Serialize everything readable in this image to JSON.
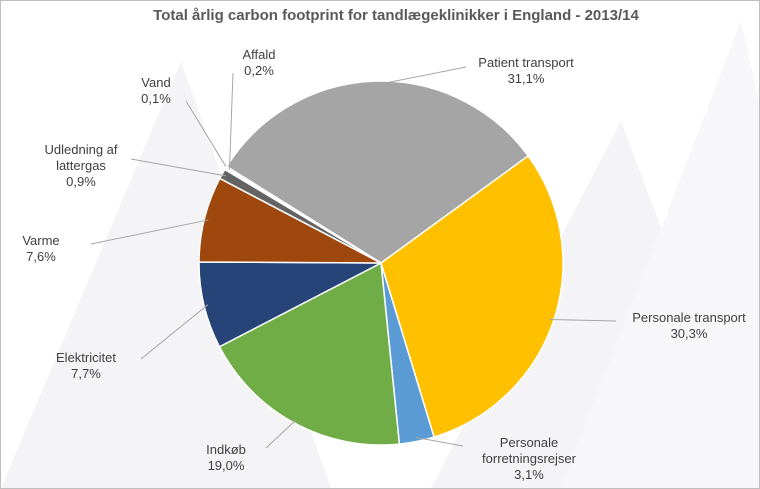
{
  "chart_data": {
    "type": "pie",
    "title": "Total årlig carbon footprint for tandlægeklinikker i England - 2013/14",
    "categories": [
      "Patient transport",
      "Personale transport",
      "Personale forretningsrejser",
      "Indkøb",
      "Elektricitet",
      "Varme",
      "Udledning af lattergas",
      "Vand",
      "Affald"
    ],
    "values": [
      31.1,
      30.3,
      3.1,
      19.0,
      7.7,
      7.6,
      0.9,
      0.1,
      0.2
    ],
    "value_labels": [
      "31,1%",
      "30,3%",
      "3,1%",
      "19,0%",
      "7,7%",
      "7,6%",
      "0,9%",
      "0,1%",
      "0,2%"
    ],
    "colors": [
      "#a5a5a5",
      "#ffc000",
      "#5b9bd5",
      "#70ad47",
      "#264478",
      "#9e480e",
      "#636363",
      "#255e91",
      "#ffffff"
    ]
  }
}
